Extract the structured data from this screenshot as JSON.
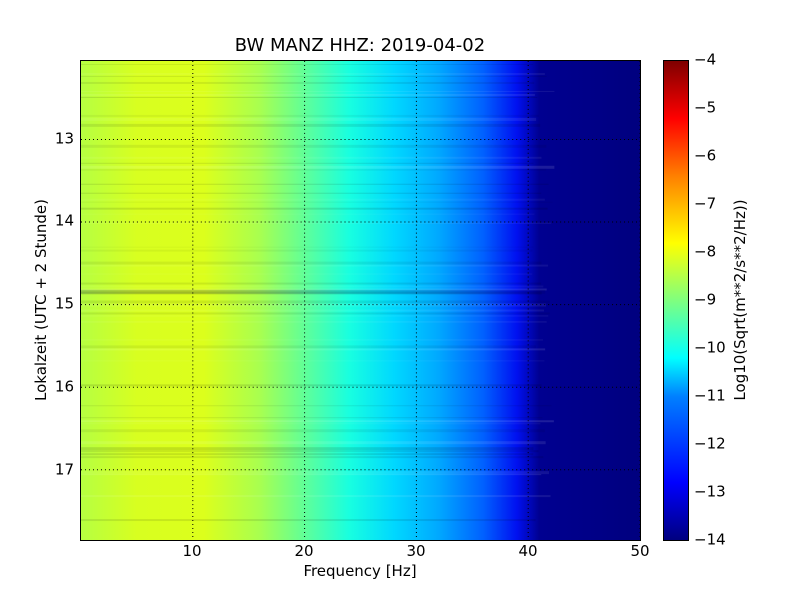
{
  "chart_data": {
    "type": "heatmap",
    "title": "BW MANZ HHZ: 2019-04-02",
    "xlabel": "Frequency [Hz]",
    "ylabel": "Lokalzeit (UTC + 2 Stunde)",
    "colorbar_label": "Log10(Sqrt(m**2/s**2/Hz))",
    "xlim": [
      0,
      50
    ],
    "ylim": [
      12.05,
      17.85
    ],
    "y_inverted": true,
    "xticks": [
      10,
      20,
      30,
      40,
      50
    ],
    "yticks": [
      13,
      14,
      15,
      16,
      17
    ],
    "colorbar_range": [
      -4,
      -14
    ],
    "colorbar_ticks": [
      -4,
      -5,
      -6,
      -7,
      -8,
      -9,
      -10,
      -11,
      -12,
      -13,
      -14
    ],
    "colormap": "jet",
    "grid": true,
    "approx_level_by_frequency": {
      "x": [
        0,
        5,
        10,
        15,
        20,
        25,
        30,
        35,
        38,
        40,
        42,
        50
      ],
      "values": [
        -8.7,
        -8.3,
        -8.3,
        -8.7,
        -9.6,
        -10.1,
        -10.4,
        -11.0,
        -11.8,
        -12.6,
        -14.0,
        -14.0
      ]
    }
  }
}
